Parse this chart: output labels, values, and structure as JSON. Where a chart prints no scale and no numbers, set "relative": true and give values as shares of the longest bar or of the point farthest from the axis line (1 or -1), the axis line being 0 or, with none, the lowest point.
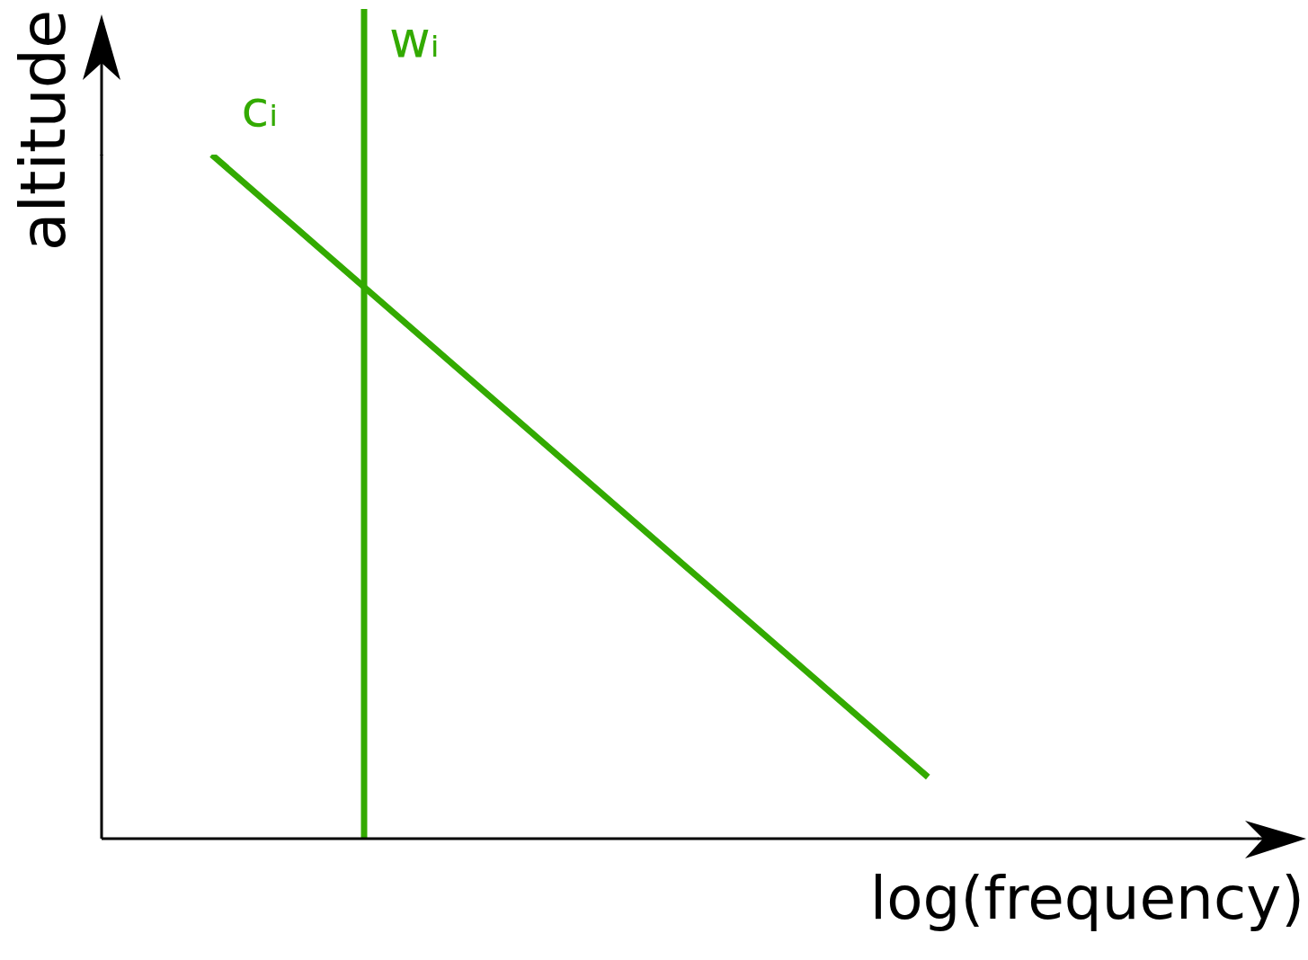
{
  "chart_data": {
    "type": "line",
    "relative": true,
    "xlabel": "log(frequency)",
    "ylabel": "altitude",
    "line_style": "solid",
    "categories": [
      null,
      null,
      null,
      null,
      null,
      null,
      null,
      null,
      null,
      null,
      null,
      null,
      null,
      null,
      null,
      null,
      null,
      null,
      null,
      null,
      null,
      null
    ],
    "series": [
      {
        "name": "cᵢ",
        "color": "#33aa00",
        "values": [
          null,
          null,
          1,
          0.93,
          0.86,
          0.79,
          0.72,
          0.65,
          0.58,
          0.51,
          0.44,
          0.37,
          0.3,
          0.23,
          0.16,
          0.09,
          null,
          null,
          null,
          null,
          null,
          null
        ]
      }
    ],
    "annotations": [
      "wᵢ"
    ]
  }
}
